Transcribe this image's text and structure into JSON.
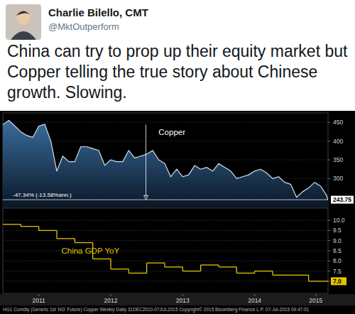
{
  "tweet": {
    "name": "Charlie Bilello, CMT",
    "handle": "@MktOutperform",
    "text": "China can try to prop up their equity market but Copper telling the true story about Chinese growth. Slowing."
  },
  "chart_data": [
    {
      "type": "area",
      "title": "Copper",
      "color": "#cfe0f2",
      "x": [
        2011.0,
        2011.083,
        2011.167,
        2011.25,
        2011.333,
        2011.417,
        2011.5,
        2011.583,
        2011.667,
        2011.75,
        2011.833,
        2011.917,
        2012.0,
        2012.083,
        2012.167,
        2012.25,
        2012.333,
        2012.417,
        2012.5,
        2012.583,
        2012.667,
        2012.75,
        2012.833,
        2012.917,
        2013.0,
        2013.083,
        2013.167,
        2013.25,
        2013.333,
        2013.417,
        2013.5,
        2013.583,
        2013.667,
        2013.75,
        2013.833,
        2013.917,
        2014.0,
        2014.083,
        2014.167,
        2014.25,
        2014.333,
        2014.417,
        2014.5,
        2014.583,
        2014.667,
        2014.75,
        2014.833,
        2014.917,
        2015.0,
        2015.083,
        2015.167,
        2015.25,
        2015.333,
        2015.417,
        2015.5,
        2015.516
      ],
      "values": [
        444,
        455,
        440,
        425,
        415,
        410,
        440,
        445,
        400,
        320,
        360,
        345,
        345,
        385,
        385,
        380,
        375,
        335,
        350,
        345,
        345,
        375,
        355,
        360,
        365,
        375,
        350,
        340,
        305,
        325,
        305,
        310,
        335,
        325,
        330,
        320,
        340,
        330,
        320,
        300,
        305,
        310,
        320,
        325,
        315,
        300,
        305,
        290,
        285,
        250,
        265,
        275,
        290,
        280,
        255,
        243.75
      ],
      "xlim": [
        2011.0,
        2015.52
      ],
      "ylim": [
        225,
        475
      ],
      "yticks": [
        300,
        350,
        400,
        450
      ],
      "grid": true,
      "tick_labels": "y",
      "annotations": [
        {
          "text": "-47.34% (-13.58%ann.)"
        },
        {
          "text": "243.75",
          "y": 243.75
        }
      ]
    },
    {
      "type": "line",
      "title": "China GDP YoY",
      "color": "#e3c400",
      "line_style": "step",
      "x": [
        2011.0,
        2011.25,
        2011.5,
        2011.75,
        2012.0,
        2012.25,
        2012.5,
        2012.75,
        2013.0,
        2013.25,
        2013.5,
        2013.75,
        2014.0,
        2014.25,
        2014.5,
        2014.75,
        2015.0,
        2015.25
      ],
      "values": [
        9.8,
        9.7,
        9.5,
        9.1,
        8.9,
        8.1,
        7.6,
        7.4,
        7.9,
        7.7,
        7.5,
        7.8,
        7.7,
        7.4,
        7.5,
        7.3,
        7.3,
        7.0
      ],
      "xlim": [
        2011.0,
        2015.52
      ],
      "xticks": [
        {
          "value": 2011.5,
          "label": "2011"
        },
        {
          "value": 2012.5,
          "label": "2012"
        },
        {
          "value": 2013.5,
          "label": "2013"
        },
        {
          "value": 2014.5,
          "label": "2014"
        },
        {
          "value": 2015.35,
          "label": "2015"
        }
      ],
      "ylim": [
        6.4,
        10.6
      ],
      "yticks": [
        {
          "value": 7,
          "label": "7.0"
        },
        {
          "value": 7.5,
          "label": "7.5"
        },
        {
          "value": 8,
          "label": "8.0"
        },
        {
          "value": 8.5,
          "label": "8.5"
        },
        {
          "value": 9,
          "label": "9.0"
        },
        {
          "value": 9.5,
          "label": "9.5"
        },
        {
          "value": 10,
          "label": "10.0"
        }
      ],
      "grid": true
    }
  ],
  "footer": "HG1 Comdty (Generic 1st 'HG' Future) Copper Weekly  Daily 31DEC2010-07JUL2015  Copyright© 2015 Bloomberg Finance L.P.  07-Jul-2015 09:47:01"
}
